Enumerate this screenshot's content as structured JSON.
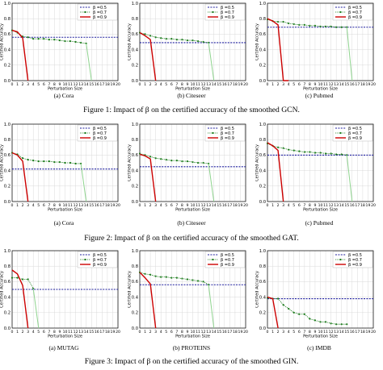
{
  "figures": [
    {
      "caption": "Figure 1: Impact of β on the certified accuracy of the smoothed GCN.",
      "panels": [
        {
          "label": "(a) Cora"
        },
        {
          "label": "(b) Citeseer"
        },
        {
          "label": "(c) Pubmed"
        }
      ]
    },
    {
      "caption": "Figure 2: Impact of β on the certified accuracy of the smoothed GAT.",
      "panels": [
        {
          "label": "(a) Cora"
        },
        {
          "label": "(b) Citeseer"
        },
        {
          "label": "(c) Pubmed"
        }
      ]
    },
    {
      "caption": "Figure 3: Impact of β on the certified accuracy of the smoothed GIN.",
      "panels": [
        {
          "label": "(a) MUTAG"
        },
        {
          "label": "(b) PROTEINS"
        },
        {
          "label": "(c) IMDB"
        }
      ]
    }
  ],
  "colors": {
    "b05": "#1f1f9e",
    "b07": "#1a7a1a",
    "b09": "#cc0000",
    "b07_tail": "#8fd48f"
  },
  "chart_data": [
    {
      "type": "line",
      "xlabel": "Perturbation Size",
      "ylabel": "Certified Accuracy",
      "xlim": [
        0,
        20
      ],
      "ylim": [
        0,
        1.0
      ],
      "yticks": [
        "0.0",
        "0.2",
        "0.4",
        "0.6",
        "0.8",
        "1.0"
      ],
      "xticks": [
        "0",
        "1",
        "2",
        "3",
        "4",
        "5",
        "6",
        "7",
        "8",
        "9",
        "10",
        "11",
        "12",
        "13",
        "14",
        "15",
        "16",
        "17",
        "18",
        "19",
        "20"
      ],
      "legend": [
        "β =0.5",
        "β =0.7",
        "β =0.9"
      ],
      "legend_position": "top-right",
      "series": [
        {
          "name": "β =0.5",
          "x": [
            0,
            20
          ],
          "y": [
            0.56,
            0.56
          ]
        },
        {
          "name": "β =0.7",
          "x": [
            0,
            1,
            2,
            3,
            4,
            5,
            6,
            7,
            8,
            9,
            10,
            11,
            12,
            13,
            14,
            15
          ],
          "y": [
            0.65,
            0.62,
            0.57,
            0.56,
            0.54,
            0.54,
            0.54,
            0.53,
            0.53,
            0.52,
            0.51,
            0.51,
            0.5,
            0.49,
            0.48,
            0.0
          ]
        },
        {
          "name": "β =0.9",
          "x": [
            0,
            1,
            2,
            3
          ],
          "y": [
            0.65,
            0.63,
            0.55,
            0.0
          ]
        }
      ]
    },
    {
      "type": "line",
      "xlabel": "Perturbation Size",
      "ylabel": "Certified Accuracy",
      "xlim": [
        0,
        20
      ],
      "ylim": [
        0,
        1.0
      ],
      "yticks": [
        "0.0",
        "0.2",
        "0.4",
        "0.6",
        "0.8",
        "1.0"
      ],
      "xticks": [
        "0",
        "1",
        "2",
        "3",
        "4",
        "5",
        "6",
        "7",
        "8",
        "9",
        "10",
        "11",
        "12",
        "13",
        "14",
        "15",
        "16",
        "17",
        "18",
        "19",
        "20"
      ],
      "legend": [
        "β =0.5",
        "β =0.7",
        "β =0.9"
      ],
      "legend_position": "top-right",
      "series": [
        {
          "name": "β =0.5",
          "x": [
            0,
            20
          ],
          "y": [
            0.49,
            0.49
          ]
        },
        {
          "name": "β =0.7",
          "x": [
            0,
            1,
            2,
            3,
            4,
            5,
            6,
            7,
            8,
            9,
            10,
            11,
            12,
            13,
            14
          ],
          "y": [
            0.62,
            0.6,
            0.58,
            0.56,
            0.55,
            0.54,
            0.54,
            0.53,
            0.53,
            0.52,
            0.52,
            0.51,
            0.5,
            0.49,
            0.0
          ]
        },
        {
          "name": "β =0.9",
          "x": [
            0,
            1,
            2,
            3
          ],
          "y": [
            0.62,
            0.58,
            0.53,
            0.0
          ]
        }
      ]
    },
    {
      "type": "line",
      "xlabel": "Perturbation Size",
      "ylabel": "Certified Accuracy",
      "xlim": [
        0,
        20
      ],
      "ylim": [
        0,
        1.0
      ],
      "yticks": [
        "0.0",
        "0.2",
        "0.4",
        "0.6",
        "0.8",
        "1.0"
      ],
      "xticks": [
        "0",
        "1",
        "2",
        "3",
        "4",
        "5",
        "6",
        "7",
        "8",
        "9",
        "10",
        "11",
        "12",
        "13",
        "14",
        "15",
        "16",
        "17",
        "18",
        "19",
        "20"
      ],
      "legend": [
        "β =0.5",
        "β =0.7",
        "β =0.9"
      ],
      "legend_position": "top-right",
      "series": [
        {
          "name": "β =0.5",
          "x": [
            0,
            20
          ],
          "y": [
            0.69,
            0.69
          ]
        },
        {
          "name": "β =0.7",
          "x": [
            0,
            1,
            2,
            3,
            4,
            5,
            6,
            7,
            8,
            9,
            10,
            11,
            12,
            13,
            14,
            15,
            16
          ],
          "y": [
            0.79,
            0.77,
            0.76,
            0.76,
            0.74,
            0.73,
            0.72,
            0.72,
            0.71,
            0.71,
            0.7,
            0.7,
            0.7,
            0.69,
            0.69,
            0.69,
            0.0
          ]
        },
        {
          "name": "β =0.9",
          "x": [
            0,
            1,
            2,
            3,
            4
          ],
          "y": [
            0.8,
            0.77,
            0.72,
            0.0,
            0.0
          ]
        }
      ]
    },
    {
      "type": "line",
      "xlabel": "Perturbation Size",
      "ylabel": "Certified Accuracy",
      "xlim": [
        0,
        20
      ],
      "ylim": [
        0,
        1.0
      ],
      "yticks": [
        "0.0",
        "0.2",
        "0.4",
        "0.6",
        "0.8",
        "1.0"
      ],
      "xticks": [
        "0",
        "1",
        "2",
        "3",
        "4",
        "5",
        "6",
        "7",
        "8",
        "9",
        "10",
        "11",
        "12",
        "13",
        "14",
        "15",
        "16",
        "17",
        "18",
        "19",
        "20"
      ],
      "legend": [
        "β =0.5",
        "β =0.7",
        "β =0.9"
      ],
      "legend_position": "top-right",
      "series": [
        {
          "name": "β =0.5",
          "x": [
            0,
            20
          ],
          "y": [
            0.42,
            0.42
          ]
        },
        {
          "name": "β =0.7",
          "x": [
            0,
            1,
            2,
            3,
            4,
            5,
            6,
            7,
            8,
            9,
            10,
            11,
            12,
            13,
            14
          ],
          "y": [
            0.63,
            0.61,
            0.56,
            0.54,
            0.53,
            0.52,
            0.52,
            0.52,
            0.51,
            0.51,
            0.5,
            0.5,
            0.49,
            0.49,
            0.0
          ]
        },
        {
          "name": "β =0.9",
          "x": [
            0,
            1,
            2,
            3
          ],
          "y": [
            0.63,
            0.6,
            0.52,
            0.0
          ]
        }
      ]
    },
    {
      "type": "line",
      "xlabel": "Perturbation Size",
      "ylabel": "Certified Accuracy",
      "xlim": [
        0,
        20
      ],
      "ylim": [
        0,
        1.0
      ],
      "yticks": [
        "0.0",
        "0.2",
        "0.4",
        "0.6",
        "0.8",
        "1.0"
      ],
      "xticks": [
        "0",
        "1",
        "2",
        "3",
        "4",
        "5",
        "6",
        "7",
        "8",
        "9",
        "10",
        "11",
        "12",
        "13",
        "14",
        "15",
        "16",
        "17",
        "18",
        "19",
        "20"
      ],
      "legend": [
        "β =0.5",
        "β =0.7",
        "β =0.9"
      ],
      "legend_position": "top-right",
      "series": [
        {
          "name": "β =0.5",
          "x": [
            0,
            20
          ],
          "y": [
            0.45,
            0.45
          ]
        },
        {
          "name": "β =0.7",
          "x": [
            0,
            1,
            2,
            3,
            4,
            5,
            6,
            7,
            8,
            9,
            10,
            11,
            12,
            13,
            14
          ],
          "y": [
            0.62,
            0.6,
            0.58,
            0.56,
            0.55,
            0.54,
            0.53,
            0.53,
            0.52,
            0.52,
            0.51,
            0.5,
            0.5,
            0.49,
            0.0
          ]
        },
        {
          "name": "β =0.9",
          "x": [
            0,
            1,
            2,
            3
          ],
          "y": [
            0.61,
            0.59,
            0.55,
            0.0
          ]
        }
      ]
    },
    {
      "type": "line",
      "xlabel": "Perturbation Size",
      "ylabel": "Certified Accuracy",
      "xlim": [
        0,
        20
      ],
      "ylim": [
        0,
        1.0
      ],
      "yticks": [
        "0.0",
        "0.2",
        "0.4",
        "0.6",
        "0.8",
        "1.0"
      ],
      "xticks": [
        "0",
        "1",
        "2",
        "3",
        "4",
        "5",
        "6",
        "7",
        "8",
        "9",
        "10",
        "11",
        "12",
        "13",
        "14",
        "15",
        "16",
        "17",
        "18",
        "19",
        "20"
      ],
      "legend": [
        "β =0.5",
        "β =0.7",
        "β =0.9"
      ],
      "legend_position": "top-right",
      "series": [
        {
          "name": "β =0.5",
          "x": [
            0,
            20
          ],
          "y": [
            0.6,
            0.6
          ]
        },
        {
          "name": "β =0.7",
          "x": [
            0,
            1,
            2,
            3,
            4,
            5,
            6,
            7,
            8,
            9,
            10,
            11,
            12,
            13,
            14,
            15,
            16
          ],
          "y": [
            0.75,
            0.72,
            0.7,
            0.69,
            0.67,
            0.66,
            0.65,
            0.64,
            0.64,
            0.63,
            0.63,
            0.62,
            0.62,
            0.61,
            0.61,
            0.6,
            0.0
          ]
        },
        {
          "name": "β =0.9",
          "x": [
            0,
            1,
            2,
            3
          ],
          "y": [
            0.76,
            0.72,
            0.66,
            0.0
          ]
        }
      ]
    },
    {
      "type": "line",
      "xlabel": "Perturbation Size",
      "ylabel": "Certified Accuracy",
      "xlim": [
        0,
        20
      ],
      "ylim": [
        0,
        1.0
      ],
      "yticks": [
        "0.0",
        "0.2",
        "0.4",
        "0.6",
        "0.8",
        "1.0"
      ],
      "xticks": [
        "0",
        "1",
        "2",
        "3",
        "4",
        "5",
        "6",
        "7",
        "8",
        "9",
        "10",
        "11",
        "12",
        "13",
        "14",
        "15",
        "16",
        "17",
        "18",
        "19",
        "20"
      ],
      "legend": [
        "β =0.5",
        "β =0.7",
        "β =0.9"
      ],
      "legend_position": "top-right",
      "series": [
        {
          "name": "β =0.5",
          "x": [
            0,
            20
          ],
          "y": [
            0.5,
            0.5
          ]
        },
        {
          "name": "β =0.7",
          "x": [
            0,
            1,
            2,
            3,
            4,
            5
          ],
          "y": [
            0.65,
            0.65,
            0.63,
            0.63,
            0.51,
            0.0
          ]
        },
        {
          "name": "β =0.9",
          "x": [
            0,
            1,
            2,
            3
          ],
          "y": [
            0.75,
            0.7,
            0.55,
            0.0
          ]
        }
      ]
    },
    {
      "type": "line",
      "xlabel": "Perturbation Size",
      "ylabel": "Certified Accuracy",
      "xlim": [
        0,
        20
      ],
      "ylim": [
        0,
        1.0
      ],
      "yticks": [
        "0.0",
        "0.2",
        "0.4",
        "0.6",
        "0.8",
        "1.0"
      ],
      "xticks": [
        "0",
        "1",
        "2",
        "3",
        "4",
        "5",
        "6",
        "7",
        "8",
        "9",
        "10",
        "11",
        "12",
        "13",
        "14",
        "15",
        "16",
        "17",
        "18",
        "19",
        "20"
      ],
      "legend": [
        "β =0.5",
        "β =0.7",
        "β =0.9"
      ],
      "legend_position": "top-right",
      "series": [
        {
          "name": "β =0.5",
          "x": [
            0,
            20
          ],
          "y": [
            0.56,
            0.56
          ]
        },
        {
          "name": "β =0.7",
          "x": [
            0,
            1,
            2,
            3,
            4,
            5,
            6,
            7,
            8,
            9,
            10,
            11,
            12,
            13,
            14
          ],
          "y": [
            0.72,
            0.7,
            0.69,
            0.67,
            0.66,
            0.66,
            0.65,
            0.65,
            0.64,
            0.63,
            0.62,
            0.61,
            0.6,
            0.56,
            0.0
          ]
        },
        {
          "name": "β =0.9",
          "x": [
            0,
            1,
            2,
            3
          ],
          "y": [
            0.72,
            0.65,
            0.57,
            0.0
          ]
        }
      ]
    },
    {
      "type": "line",
      "xlabel": "Perturbation Size",
      "ylabel": "Certified Accuracy",
      "xlim": [
        0,
        20
      ],
      "ylim": [
        0,
        1.0
      ],
      "yticks": [
        "0.0",
        "0.2",
        "0.4",
        "0.6",
        "0.8",
        "1.0"
      ],
      "xticks": [
        "0",
        "1",
        "2",
        "3",
        "4",
        "5",
        "6",
        "7",
        "8",
        "9",
        "10",
        "11",
        "12",
        "13",
        "14",
        "15",
        "16",
        "17",
        "18",
        "19",
        "20"
      ],
      "legend": [
        "β =0.5",
        "β =0.7",
        "β =0.9"
      ],
      "legend_position": "top-right",
      "series": [
        {
          "name": "β =0.5",
          "x": [
            0,
            20
          ],
          "y": [
            0.38,
            0.38
          ]
        },
        {
          "name": "β =0.7",
          "x": [
            0,
            1,
            2,
            3,
            4,
            5,
            6,
            7,
            8,
            9,
            10,
            11,
            12,
            13,
            14,
            15
          ],
          "y": [
            0.39,
            0.38,
            0.38,
            0.3,
            0.25,
            0.2,
            0.18,
            0.18,
            0.12,
            0.1,
            0.08,
            0.08,
            0.06,
            0.05,
            0.05,
            0.05
          ]
        },
        {
          "name": "β =0.9",
          "x": [
            0,
            1,
            2
          ],
          "y": [
            0.4,
            0.38,
            0.0
          ]
        }
      ]
    }
  ]
}
